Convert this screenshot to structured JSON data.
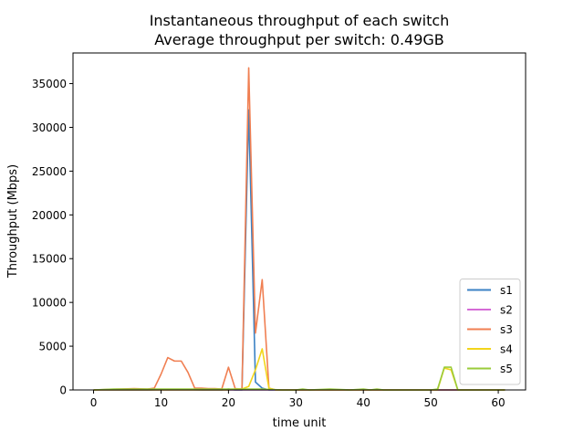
{
  "chart_data": {
    "type": "line",
    "title": "Instantaneous throughput of each switch",
    "subtitle": "Average throughput per switch: 0.49GB",
    "xlabel": "time unit",
    "ylabel": "Throughput (Mbps)",
    "xlim": [
      -3.05,
      64.05
    ],
    "ylim": [
      0,
      38500
    ],
    "xticks": [
      0,
      10,
      20,
      30,
      40,
      50,
      60
    ],
    "yticks": [
      0,
      5000,
      10000,
      15000,
      20000,
      25000,
      30000,
      35000
    ],
    "grid": false,
    "legend_position": "lower-right",
    "series": [
      {
        "name": "s1",
        "color": "#3b82c4",
        "x": [
          0,
          2,
          4,
          6,
          8,
          10,
          12,
          14,
          16,
          18,
          19,
          20,
          21,
          22,
          23,
          24,
          25,
          26,
          28,
          30,
          35,
          40,
          45,
          50,
          51,
          52,
          53,
          54,
          56,
          58,
          61
        ],
        "y": [
          0,
          0,
          0,
          0,
          0,
          50,
          50,
          50,
          0,
          0,
          0,
          100,
          0,
          0,
          32000,
          900,
          200,
          0,
          0,
          0,
          0,
          0,
          0,
          0,
          0,
          0,
          0,
          0,
          0,
          0,
          0
        ]
      },
      {
        "name": "s2",
        "color": "#d56bd6",
        "x": [
          0,
          5,
          10,
          15,
          20,
          25,
          30,
          35,
          40,
          45,
          50,
          55,
          61
        ],
        "y": [
          0,
          0,
          0,
          0,
          0,
          0,
          0,
          0,
          0,
          0,
          0,
          0,
          0
        ]
      },
      {
        "name": "s3",
        "color": "#f07f52",
        "x": [
          0,
          2,
          4,
          6,
          8,
          9,
          10,
          11,
          12,
          13,
          14,
          15,
          16,
          17,
          18,
          19,
          20,
          21,
          22,
          23,
          24,
          25,
          26,
          27,
          30,
          35,
          40,
          45,
          50,
          51,
          52,
          53,
          54,
          56,
          58,
          61
        ],
        "y": [
          0,
          50,
          100,
          150,
          100,
          200,
          1800,
          3700,
          3300,
          3300,
          2000,
          200,
          200,
          150,
          150,
          100,
          2600,
          150,
          100,
          36800,
          6500,
          12600,
          200,
          0,
          0,
          0,
          0,
          0,
          0,
          0,
          0,
          0,
          0,
          0,
          0,
          0
        ]
      },
      {
        "name": "s4",
        "color": "#f2d51b",
        "x": [
          0,
          5,
          10,
          15,
          20,
          21,
          22,
          23,
          24,
          25,
          26,
          27,
          30,
          35,
          40,
          45,
          50,
          51,
          52,
          53,
          54,
          56,
          58,
          61
        ],
        "y": [
          0,
          0,
          0,
          0,
          0,
          100,
          100,
          400,
          2300,
          4700,
          200,
          0,
          0,
          0,
          0,
          0,
          0,
          0,
          2500,
          2300,
          0,
          0,
          0,
          0
        ]
      },
      {
        "name": "s5",
        "color": "#9acb3a",
        "x": [
          0,
          3,
          6,
          9,
          12,
          15,
          18,
          20,
          22,
          25,
          28,
          30,
          31,
          32,
          35,
          38,
          40,
          41,
          42,
          43,
          45,
          48,
          50,
          51,
          52,
          53,
          54,
          56,
          58,
          61
        ],
        "y": [
          0,
          100,
          100,
          100,
          100,
          100,
          100,
          100,
          100,
          100,
          0,
          0,
          100,
          0,
          100,
          0,
          100,
          0,
          100,
          0,
          0,
          0,
          0,
          100,
          2600,
          2600,
          0,
          0,
          0,
          0
        ]
      }
    ]
  }
}
